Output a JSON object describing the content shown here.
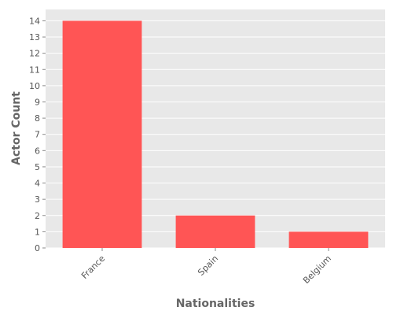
{
  "chart_data": {
    "type": "bar",
    "categories": [
      "France",
      "Spain",
      "Belgium"
    ],
    "values": [
      14,
      2,
      1
    ],
    "title": "",
    "xlabel": "Nationalities",
    "ylabel": "Actor Count",
    "ylim": [
      0,
      14.7
    ],
    "yticks": [
      0,
      1,
      2,
      3,
      4,
      5,
      6,
      7,
      8,
      9,
      10,
      11,
      12,
      13,
      14
    ],
    "grid": true,
    "legend": "none",
    "colors": {
      "bar": "#ff5555",
      "plot_background": "#e8e8e8",
      "grid": "#ffffff",
      "text": "#555555",
      "label": "#666666"
    }
  }
}
